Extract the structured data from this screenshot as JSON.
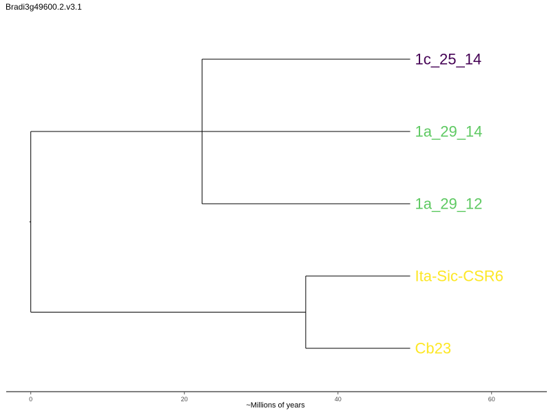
{
  "chart_data": {
    "type": "dendrogram",
    "title": "Bradi3g49600.2.v3.1",
    "xlabel": "~Millions of years",
    "ylabel": "",
    "xlim": [
      -3.2,
      67.2
    ],
    "xticks": [
      0,
      20,
      40,
      60
    ],
    "grid": false,
    "legend": "none",
    "leaves": [
      {
        "label": "1c_25_14",
        "color": "#440154",
        "x": 49.4
      },
      {
        "label": "1a_29_14",
        "color": "#5ec962",
        "x": 49.4
      },
      {
        "label": "1a_29_12",
        "color": "#5ec962",
        "x": 49.4
      },
      {
        "label": "Ita-Sic-CSR6",
        "color": "#fde725",
        "x": 49.4
      },
      {
        "label": "Cb23",
        "color": "#fde725",
        "x": 49.4
      }
    ],
    "nodes": [
      {
        "id": "root",
        "x": 0,
        "children": [
          "n1",
          "n2"
        ]
      },
      {
        "id": "n1",
        "x": 22.3,
        "children": [
          "1c_25_14",
          "1a_29_14",
          "1a_29_12"
        ]
      },
      {
        "id": "n2",
        "x": 35.8,
        "children": [
          "Ita-Sic-CSR6",
          "Cb23"
        ]
      }
    ],
    "line_color": "#000000"
  }
}
